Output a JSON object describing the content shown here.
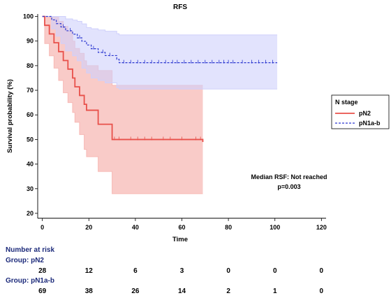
{
  "chart_data": {
    "type": "line",
    "subtype": "kaplan-meier",
    "title": "RFS",
    "xlabel": "Time",
    "ylabel": "Survival probability (%)",
    "xlim": [
      -2,
      122
    ],
    "ylim": [
      18,
      101
    ],
    "xticks": [
      0,
      20,
      40,
      60,
      80,
      100,
      120
    ],
    "yticks": [
      20,
      30,
      40,
      50,
      60,
      70,
      80,
      90,
      100
    ],
    "grid": false,
    "legend": {
      "title": "N stage",
      "position": "right"
    },
    "annotation_lines": [
      "Median RSF: Not reached",
      "p=0.003"
    ],
    "series": [
      {
        "name": "pN2",
        "color": "#e8504a",
        "band_color": "#f7b9b5",
        "dash": "solid",
        "steps": [
          [
            0,
            100
          ],
          [
            1,
            96.4
          ],
          [
            3,
            92.9
          ],
          [
            5,
            89.3
          ],
          [
            7,
            85.7
          ],
          [
            9,
            82.1
          ],
          [
            11,
            78.6
          ],
          [
            13,
            75
          ],
          [
            14,
            71.4
          ],
          [
            16,
            67.9
          ],
          [
            18,
            64.3
          ],
          [
            19,
            61.9
          ],
          [
            24,
            56.2
          ],
          [
            30,
            50
          ],
          [
            69,
            49
          ]
        ],
        "upper": [
          [
            0,
            100
          ],
          [
            1,
            100
          ],
          [
            3,
            100
          ],
          [
            5,
            100
          ],
          [
            7,
            98
          ],
          [
            9,
            96
          ],
          [
            11,
            94
          ],
          [
            13,
            90
          ],
          [
            14,
            87
          ],
          [
            16,
            85
          ],
          [
            18,
            82
          ],
          [
            19,
            80
          ],
          [
            24,
            78
          ],
          [
            30,
            72
          ],
          [
            69,
            72
          ]
        ],
        "lower": [
          [
            0,
            100
          ],
          [
            1,
            89
          ],
          [
            3,
            84
          ],
          [
            5,
            79
          ],
          [
            7,
            74
          ],
          [
            9,
            69
          ],
          [
            11,
            65
          ],
          [
            13,
            61
          ],
          [
            14,
            57
          ],
          [
            16,
            52
          ],
          [
            18,
            46
          ],
          [
            19,
            43
          ],
          [
            24,
            37
          ],
          [
            30,
            28
          ],
          [
            69,
            28
          ]
        ],
        "censor_times": [
          31,
          33,
          38,
          41,
          44,
          47,
          52,
          55,
          60,
          66,
          68
        ]
      },
      {
        "name": "pN1a-b",
        "color": "#2a36d0",
        "band_color": "#cfd0fb",
        "dash": "dashed",
        "steps": [
          [
            0,
            100
          ],
          [
            4,
            98.6
          ],
          [
            6,
            97.1
          ],
          [
            8,
            95.7
          ],
          [
            10,
            94.2
          ],
          [
            13,
            92.8
          ],
          [
            15,
            91.3
          ],
          [
            17,
            89.9
          ],
          [
            19,
            88.4
          ],
          [
            21,
            86.9
          ],
          [
            24,
            85.4
          ],
          [
            27,
            84.1
          ],
          [
            32,
            82.6
          ],
          [
            33,
            81.2
          ],
          [
            101,
            81.2
          ]
        ],
        "upper": [
          [
            0,
            100
          ],
          [
            4,
            100
          ],
          [
            6,
            100
          ],
          [
            8,
            100
          ],
          [
            10,
            99
          ],
          [
            13,
            98.5
          ],
          [
            15,
            98
          ],
          [
            17,
            97
          ],
          [
            19,
            95.5
          ],
          [
            21,
            95
          ],
          [
            24,
            94.5
          ],
          [
            27,
            94
          ],
          [
            32,
            93
          ],
          [
            33,
            92.5
          ],
          [
            101,
            92.5
          ]
        ],
        "lower": [
          [
            0,
            100
          ],
          [
            4,
            95
          ],
          [
            6,
            92
          ],
          [
            8,
            89
          ],
          [
            10,
            86
          ],
          [
            13,
            84
          ],
          [
            15,
            82
          ],
          [
            17,
            79
          ],
          [
            19,
            77
          ],
          [
            21,
            75
          ],
          [
            24,
            74
          ],
          [
            27,
            73
          ],
          [
            32,
            71
          ],
          [
            33,
            70.5
          ],
          [
            101,
            70.5
          ]
        ],
        "censor_times": [
          9,
          12,
          16,
          22,
          26,
          29,
          35,
          38,
          41,
          44,
          47,
          50,
          53,
          56,
          58,
          61,
          64,
          67,
          70,
          73,
          76,
          78,
          80,
          82,
          86,
          90,
          93,
          96,
          99
        ]
      }
    ]
  },
  "risk_table": {
    "title": "Number at risk",
    "times": [
      0,
      20,
      40,
      60,
      80,
      100,
      120
    ],
    "groups": [
      {
        "label": "Group: pN2",
        "counts": [
          "28",
          "12",
          "6",
          "3",
          "0",
          "0",
          "0"
        ]
      },
      {
        "label": "Group: pN1a-b",
        "counts": [
          "69",
          "38",
          "26",
          "14",
          "2",
          "1",
          "0"
        ]
      }
    ]
  },
  "colors": {
    "axis": "#000000",
    "risk_heading": "#1c2a7a"
  }
}
